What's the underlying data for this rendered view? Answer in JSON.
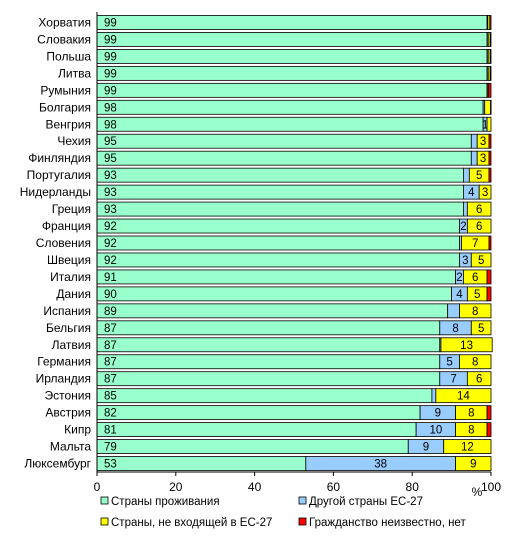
{
  "chart_data": {
    "type": "bar",
    "orientation": "horizontal",
    "stacked": true,
    "categories": [
      "Хорватия",
      "Словакия",
      "Польша",
      "Литва",
      "Румыния",
      "Болгария",
      "Венгрия",
      "Чехия",
      "Финляндия",
      "Португалия",
      "Нидерланды",
      "Греция",
      "Франция",
      "Словения",
      "Швеция",
      "Италия",
      "Дания",
      "Испания",
      "Бельгия",
      "Латвия",
      "Германия",
      "Ирландия",
      "Эстония",
      "Австрия",
      "Кипр",
      "Мальта",
      "Люксембург"
    ],
    "series": [
      {
        "name": "Страны проживания",
        "color": "#99ffcc",
        "values": [
          99,
          99,
          99,
          99,
          99,
          98,
          98,
          95,
          95,
          93,
          93,
          93,
          92,
          92,
          92,
          91,
          90,
          89,
          87,
          87,
          87,
          87,
          85,
          82,
          81,
          79,
          53
        ],
        "labels": [
          "99",
          "99",
          "99",
          "99",
          "99",
          "98",
          "98",
          "95",
          "95",
          "93",
          "93",
          "93",
          "92",
          "92",
          "92",
          "91",
          "90",
          "89",
          "87",
          "87",
          "87",
          "87",
          "85",
          "82",
          "81",
          "79",
          "53"
        ]
      },
      {
        "name": "Другой страны ЕС-27",
        "color": "#99ccff",
        "values": [
          0.2,
          0.3,
          0.3,
          0.3,
          0.1,
          0.4,
          1,
          1.5,
          1.5,
          1.5,
          4,
          1,
          2,
          0.5,
          3,
          2,
          4,
          3,
          8,
          0.3,
          5,
          7,
          1,
          9,
          10,
          9,
          38
        ],
        "labels": [
          "",
          "",
          "",
          "",
          "",
          "",
          "1",
          "",
          "",
          "",
          "4",
          "",
          "2",
          "",
          "3",
          "2",
          "4",
          "",
          "8",
          "",
          "5",
          "7",
          "",
          "9",
          "10",
          "9",
          "38"
        ]
      },
      {
        "name": "Страны, не входящей в ЕС-27",
        "color": "#ffff00",
        "values": [
          0.5,
          0.5,
          0.5,
          0.5,
          0.3,
          1.5,
          1,
          3,
          3,
          5,
          3,
          6,
          6,
          7,
          5,
          6,
          5,
          8,
          5,
          13,
          8,
          6,
          14,
          8,
          8,
          12,
          9
        ],
        "labels": [
          "",
          "",
          "",
          "",
          "",
          "",
          "",
          "3",
          "3",
          "5",
          "3",
          "6",
          "6",
          "7",
          "5",
          "6",
          "5",
          "8",
          "5",
          "13",
          "8",
          "6",
          "14",
          "8",
          "8",
          "12",
          "9"
        ]
      },
      {
        "name": "Гражданство неизвестно, нет",
        "color": "#ff0000",
        "values": [
          0.3,
          0.2,
          0.2,
          0.2,
          0.6,
          0.1,
          0,
          0.5,
          0.5,
          0.5,
          0,
          0,
          0,
          0.5,
          0,
          1,
          1,
          0,
          0,
          0,
          0,
          0,
          0,
          1,
          1,
          0,
          0
        ],
        "labels": [
          "",
          "",
          "",
          "",
          "",
          "",
          "",
          "",
          "",
          "",
          "",
          "",
          "",
          "",
          "",
          "",
          "",
          "",
          "",
          "",
          "",
          "",
          "",
          "",
          "",
          "",
          ""
        ]
      }
    ],
    "xlim": [
      0,
      100
    ],
    "xticks": [
      "0",
      "20",
      "40",
      "60",
      "80",
      "100"
    ],
    "xunit": "%",
    "legend_position": "bottom",
    "grid": false
  }
}
